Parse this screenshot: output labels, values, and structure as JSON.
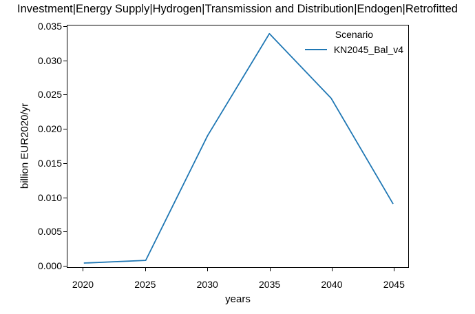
{
  "chart_data": {
    "type": "line",
    "title": "Investment|Energy Supply|Hydrogen|Transmission and Distribution|Endogen|Retrofitted",
    "xlabel": "years",
    "ylabel": "billion EUR2020/yr",
    "x": [
      2020,
      2025,
      2030,
      2035,
      2040,
      2045
    ],
    "series": [
      {
        "name": "KN2045_Bal_v4",
        "color": "#1f77b4",
        "values": [
          0.0003,
          0.0007,
          0.019,
          0.034,
          0.0245,
          0.009
        ]
      }
    ],
    "xticks": [
      2020,
      2025,
      2030,
      2035,
      2040,
      2045
    ],
    "yticks": [
      0.0,
      0.005,
      0.01,
      0.015,
      0.02,
      0.025,
      0.03,
      0.035
    ],
    "ytick_decimals": 3,
    "xlim": [
      2018.7,
      2046.2
    ],
    "ylim": [
      -0.0003,
      0.0352
    ],
    "grid": false,
    "legend": {
      "title": "Scenario",
      "position": "upper right"
    },
    "colors": {
      "axis": "#000000",
      "background": "#ffffff",
      "text": "#000000"
    }
  }
}
